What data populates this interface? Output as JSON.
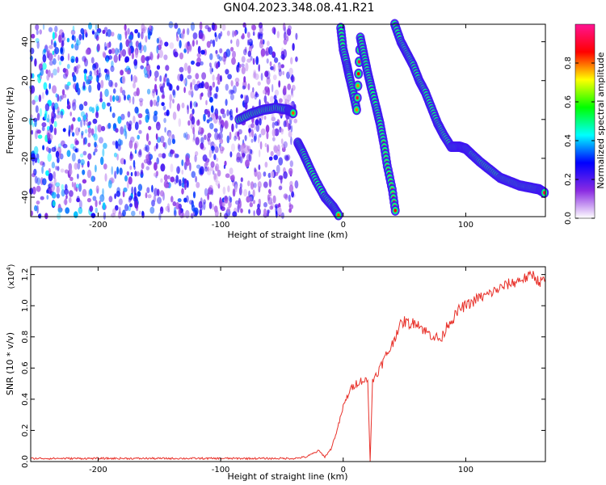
{
  "figure_title": "GN04.2023.348.08.41.R21",
  "chart_data": [
    {
      "type": "heatmap",
      "panel": "spectrogram",
      "xlabel": "Height of straight line (km)",
      "ylabel": "Frequency (Hz)",
      "xlim": [
        -255,
        165
      ],
      "ylim": [
        -50,
        49
      ],
      "xticks": [
        -200,
        -100,
        0,
        100
      ],
      "yticks": [
        -40,
        -20,
        0,
        20,
        40
      ],
      "colorbar": {
        "label": "Normalized spectral amplitude",
        "range": [
          0.0,
          1.0
        ],
        "ticks": [
          "0.0",
          "0.2",
          "0.4",
          "0.6",
          "0.8"
        ],
        "colormap": [
          "#ffffff",
          "#8a2be2",
          "#0000ff",
          "#00ffff",
          "#00ff00",
          "#ffff00",
          "#ff0000",
          "#ff1493"
        ]
      },
      "noise_region": {
        "x_range": [
          -255,
          -38
        ],
        "y_range": [
          -50,
          49
        ],
        "typical_amplitude": 0.3
      },
      "series": [
        {
          "x": [
            -85,
            -75,
            -65,
            -55,
            -45,
            -40
          ],
          "y": [
            0,
            3,
            5,
            6,
            5,
            3
          ]
        },
        {
          "x": [
            -37,
            -33,
            -28,
            -22,
            -15,
            -8,
            -3
          ],
          "y": [
            -12,
            -17,
            -24,
            -32,
            -40,
            -45,
            -50
          ]
        },
        {
          "x": [
            -2,
            0,
            3,
            5,
            8,
            11,
            14,
            17,
            20,
            23,
            27,
            30,
            33,
            36,
            40,
            43
          ],
          "y": [
            47,
            36,
            28,
            22,
            14,
            5,
            42,
            33,
            24,
            16,
            6,
            -2,
            -12,
            -24,
            -36,
            -49
          ]
        },
        {
          "x": [
            42,
            47,
            52,
            57,
            62,
            67,
            72,
            77,
            82,
            88,
            95,
            100,
            105,
            112,
            120,
            128,
            136,
            144,
            152,
            160,
            165
          ],
          "y": [
            49,
            40,
            34,
            28,
            20,
            14,
            6,
            -2,
            -8,
            -14,
            -14,
            -15,
            -18,
            -22,
            -26,
            -30,
            -32,
            -34,
            -35,
            -36,
            -38
          ]
        }
      ]
    },
    {
      "type": "line",
      "panel": "snr",
      "xlabel": "Height of straight line (km)",
      "ylabel": "SNR (10 * v/v)",
      "y_multiplier_label": "(x10",
      "y_multiplier_exp": "4",
      "y_multiplier_close": ")",
      "xlim": [
        -255,
        165
      ],
      "ylim": [
        0.0,
        1.25
      ],
      "xticks": [
        -200,
        -100,
        0,
        100
      ],
      "yticks": [
        "0.0",
        "0.2",
        "0.4",
        "0.6",
        "0.8",
        "1.0",
        "1.2"
      ],
      "color": "#e8312a",
      "series": [
        {
          "x": [
            -255,
            -200,
            -150,
            -100,
            -60,
            -40,
            -30,
            -25,
            -20,
            -15,
            -10,
            -5,
            0,
            5,
            10,
            15,
            20,
            22,
            24,
            26,
            30,
            35,
            40,
            45,
            50,
            55,
            60,
            65,
            70,
            75,
            80,
            85,
            90,
            95,
            100,
            105,
            110,
            115,
            120,
            125,
            130,
            135,
            140,
            145,
            150,
            155,
            160,
            165
          ],
          "y": [
            0.02,
            0.02,
            0.02,
            0.02,
            0.02,
            0.02,
            0.03,
            0.05,
            0.07,
            0.03,
            0.08,
            0.2,
            0.35,
            0.45,
            0.5,
            0.52,
            0.52,
            0.0,
            0.52,
            0.55,
            0.6,
            0.68,
            0.75,
            0.86,
            0.9,
            0.88,
            0.9,
            0.85,
            0.82,
            0.8,
            0.78,
            0.88,
            0.92,
            0.98,
            1.0,
            1.02,
            1.05,
            1.06,
            1.08,
            1.1,
            1.12,
            1.14,
            1.15,
            1.17,
            1.18,
            1.2,
            1.15,
            1.17
          ]
        }
      ]
    }
  ]
}
